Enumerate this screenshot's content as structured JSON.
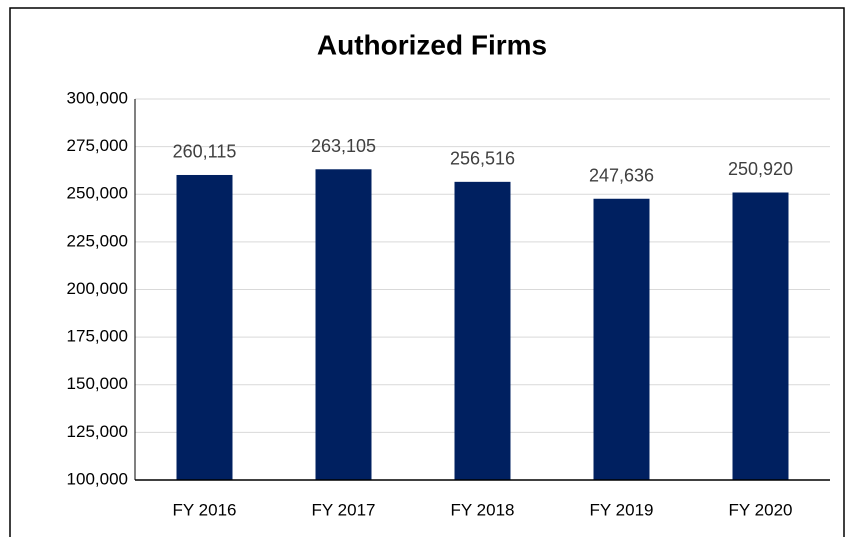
{
  "chart_data": {
    "type": "bar",
    "title": "Authorized Firms",
    "categories": [
      "FY 2016",
      "FY 2017",
      "FY 2018",
      "FY 2019",
      "FY 2020"
    ],
    "values": [
      260115,
      263105,
      256516,
      247636,
      250920
    ],
    "value_labels": [
      "260,115",
      "263,105",
      "256,516",
      "247,636",
      "250,920"
    ],
    "color": "#002060",
    "ylim": [
      100000,
      300000
    ],
    "yticks": [
      {
        "value": 100000,
        "label": "100,000"
      },
      {
        "value": 125000,
        "label": "125,000"
      },
      {
        "value": 150000,
        "label": "150,000"
      },
      {
        "value": 175000,
        "label": "175,000"
      },
      {
        "value": 200000,
        "label": "200,000"
      },
      {
        "value": 225000,
        "label": "225,000"
      },
      {
        "value": 250000,
        "label": "250,000"
      },
      {
        "value": 275000,
        "label": "275,000"
      },
      {
        "value": 300000,
        "label": "300,000"
      }
    ],
    "grid": true
  }
}
